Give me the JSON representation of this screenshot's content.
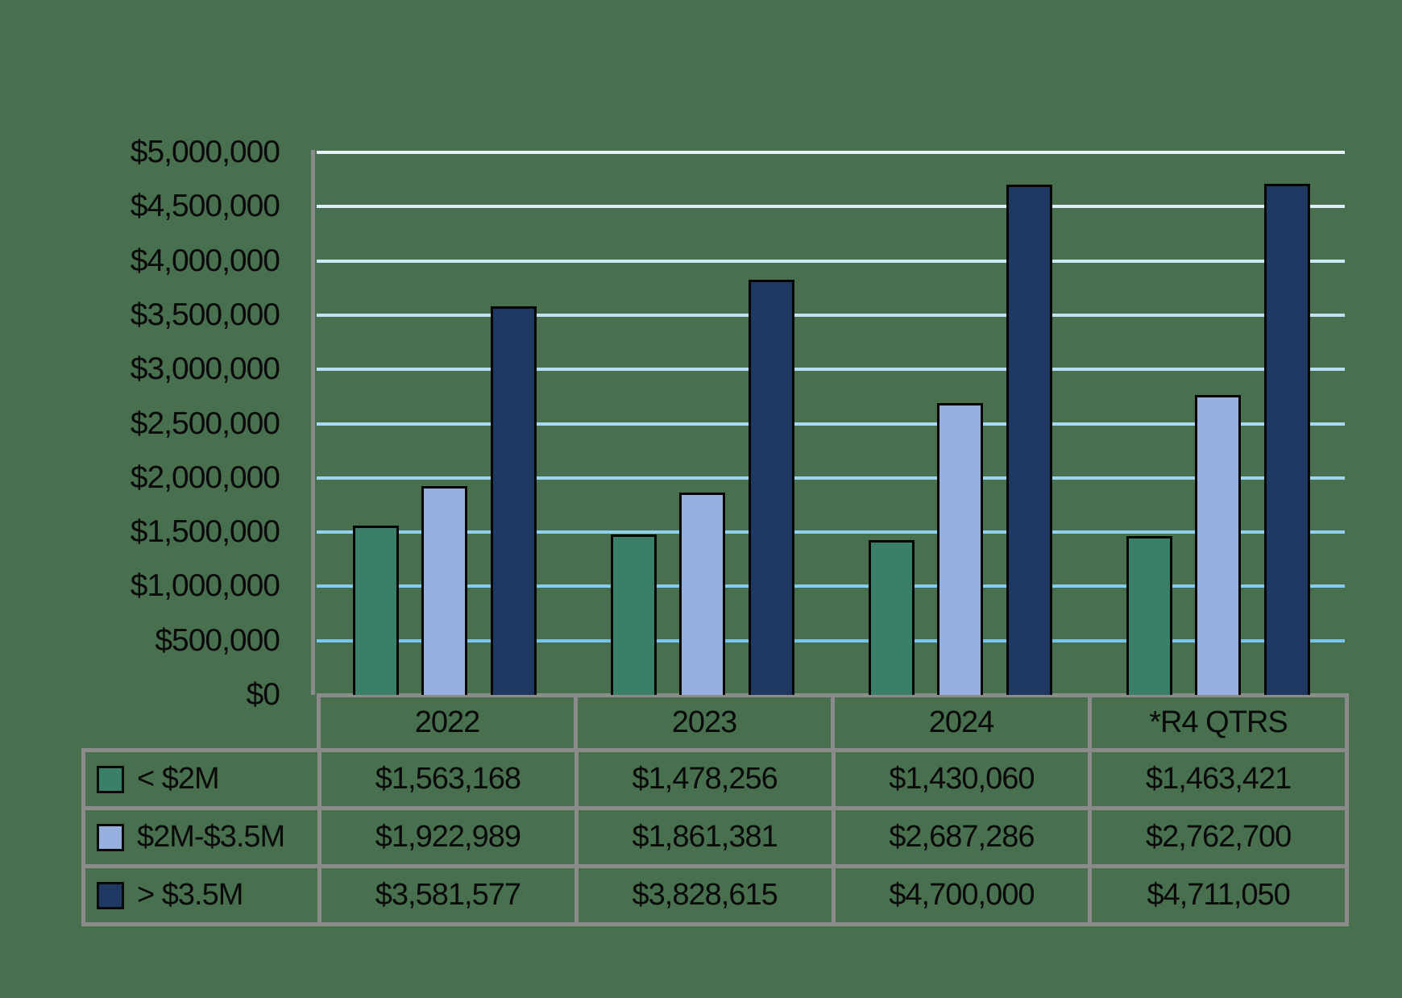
{
  "chart_data": {
    "type": "bar",
    "title": "",
    "categories": [
      "2022",
      "2023",
      "2024",
      "*R4 QTRS"
    ],
    "series": [
      {
        "name": "< $2M",
        "color": "#3A8068",
        "values": [
          1563168,
          1478256,
          1430060,
          1463421
        ],
        "formatted": [
          "$1,563,168",
          "$1,478,256",
          "$1,430,060",
          "$1,463,421"
        ]
      },
      {
        "name": "$2M-$3.5M",
        "color": "#96B0E0",
        "values": [
          1922989,
          1861381,
          2687286,
          2762700
        ],
        "formatted": [
          "$1,922,989",
          "$1,861,381",
          "$2,687,286",
          "$2,762,700"
        ]
      },
      {
        "name": "> $3.5M",
        "color": "#203963",
        "values": [
          3581577,
          3828615,
          4700000,
          4711050
        ],
        "formatted": [
          "$3,581,577",
          "$3,828,615",
          "$4,700,000",
          "$4,711,050"
        ]
      }
    ],
    "ylim": [
      0,
      5000000
    ],
    "y_ticks": [
      "$5,000,000",
      "$4,500,000",
      "$4,000,000",
      "$3,500,000",
      "$3,000,000",
      "$2,500,000",
      "$2,000,000",
      "$1,500,000",
      "$1,000,000",
      "$500,000",
      "$0"
    ],
    "grid": true,
    "legend_position": "table-left-column",
    "colors": {
      "background": "#48704E",
      "gridline_top": "#E7F2FB",
      "gridline_bottom": "#79C6EC",
      "axis_line": "#8A8A8A",
      "table_border": "#8B8B8B",
      "bar_outline": "#050505",
      "text": "#0a0a0a"
    }
  },
  "table": {
    "columns": [
      "2022",
      "2023",
      "2024",
      "*R4 QTRS"
    ],
    "rows": [
      {
        "label": "< $2M",
        "cells": [
          "$1,563,168",
          "$1,478,256",
          "$1,430,060",
          "$1,463,421"
        ]
      },
      {
        "label": "$2M-$3.5M",
        "cells": [
          "$1,922,989",
          "$1,861,381",
          "$2,687,286",
          "$2,762,700"
        ]
      },
      {
        "label": "> $3.5M",
        "cells": [
          "$3,581,577",
          "$3,828,615",
          "$4,700,000",
          "$4,711,050"
        ]
      }
    ]
  }
}
